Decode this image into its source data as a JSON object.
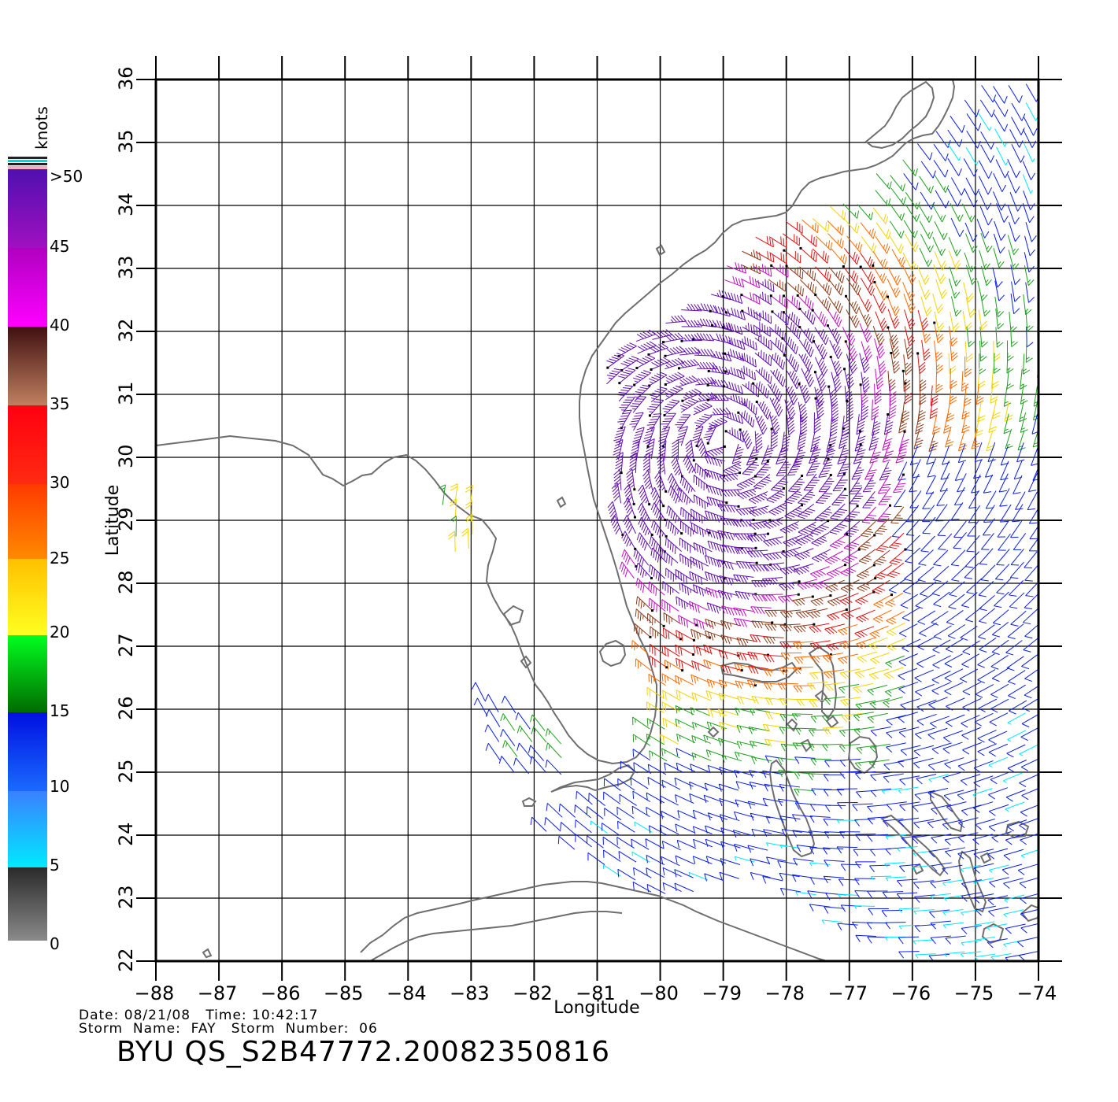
{
  "colorbar": {
    "unit_label": "knots",
    "labels": [
      ">50",
      "45",
      "40",
      "35",
      "30",
      "25",
      "20",
      "15",
      "10",
      "5",
      "0"
    ]
  },
  "axes": {
    "x_label": "Longitude",
    "y_label": "Latitude",
    "lon_ticks": [
      "-88",
      "-87",
      "-86",
      "-85",
      "-84",
      "-83",
      "-82",
      "-81",
      "-80",
      "-79",
      "-78",
      "-77",
      "-76",
      "-75",
      "-74"
    ],
    "lat_ticks": [
      "22",
      "23",
      "24",
      "25",
      "26",
      "27",
      "28",
      "29",
      "30",
      "31",
      "32",
      "33",
      "34",
      "35",
      "36"
    ],
    "lon_range": [
      -88,
      -74
    ],
    "lat_range": [
      22,
      36
    ],
    "grid": true
  },
  "footer": {
    "date_line": "Date: 08/21/08   Time: 10:42:17",
    "storm_line": "Storm  Name:  FAY   Storm  Number:  06",
    "product_title": "BYU  QS_S2B47772.20082350816"
  },
  "colors": {
    "coastline": "#6e6e6e",
    "grid": "#000000",
    "speed_bands": [
      "#7a7a7a",
      "#00e5ff",
      "#0a1ee6",
      "#1f9f1f",
      "#f2d400",
      "#ff6a00",
      "#e01010",
      "#8a3a1a",
      "#c010c0",
      "#6010b0"
    ]
  },
  "chart_data": {
    "type": "wind-barb-map",
    "storm": "FAY",
    "center": {
      "lon": -79.0,
      "lat": 30.2
    }
  }
}
